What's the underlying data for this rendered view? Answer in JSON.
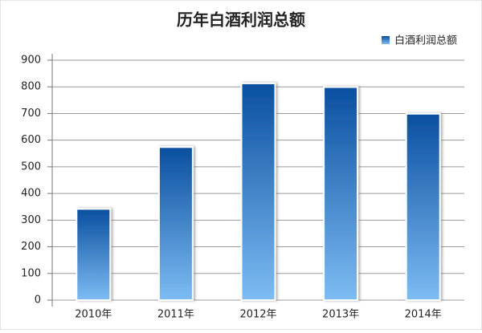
{
  "chart_data": {
    "type": "bar",
    "title": "历年白酒利润总额",
    "categories": [
      "2010年",
      "2011年",
      "2012年",
      "2013年",
      "2014年"
    ],
    "series": [
      {
        "name": "白酒利润总额",
        "color": "#0a4fa0",
        "values": [
          342,
          574,
          813,
          799,
          699
        ]
      }
    ],
    "ylim": [
      0,
      900
    ],
    "yticks": [
      0,
      100,
      200,
      300,
      400,
      500,
      600,
      700,
      800,
      900
    ],
    "grid": true,
    "legend": "top-right"
  }
}
